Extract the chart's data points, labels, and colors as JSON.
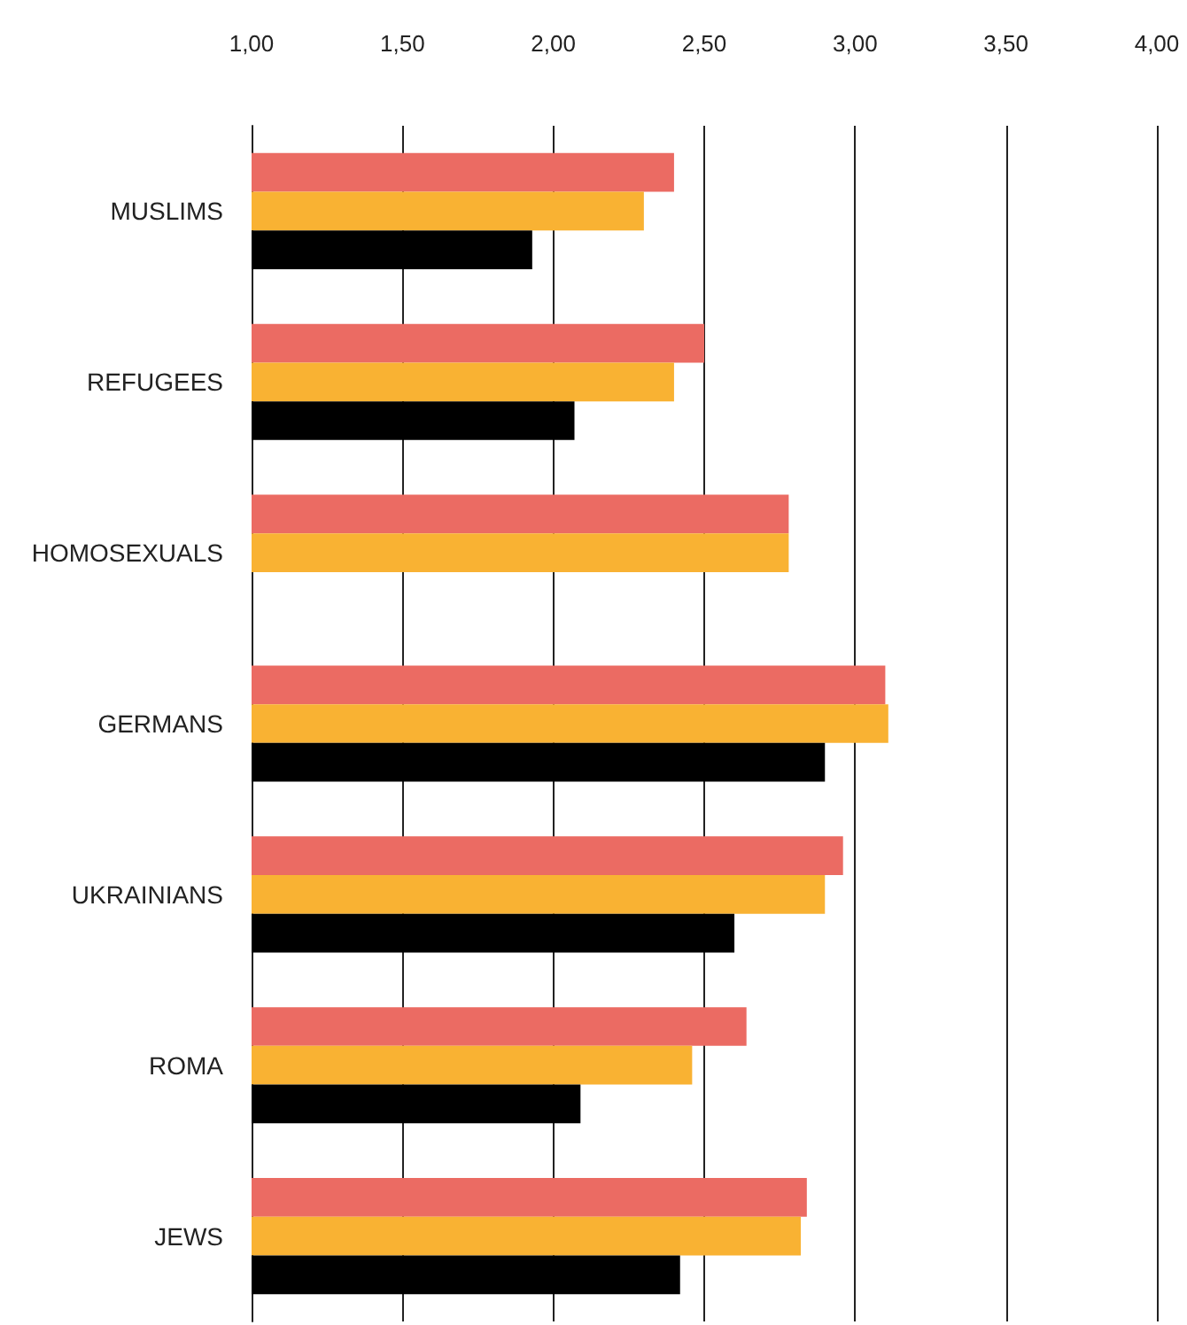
{
  "chart_data": {
    "type": "bar",
    "orientation": "horizontal",
    "categories": [
      "MUSLIMS",
      "REFUGEES",
      "HOMOSEXUALS",
      "GERMANS",
      "UKRAINIANS",
      "ROMA",
      "JEWS"
    ],
    "series": [
      {
        "color": "#eb6b63",
        "values": [
          2.4,
          2.5,
          2.78,
          3.1,
          2.96,
          2.64,
          2.84
        ]
      },
      {
        "color": "#f9b233",
        "values": [
          2.3,
          2.4,
          2.78,
          3.11,
          2.9,
          2.46,
          2.82
        ]
      },
      {
        "color": "#000000",
        "values": [
          1.93,
          2.07,
          null,
          2.9,
          2.6,
          2.09,
          2.42
        ]
      }
    ],
    "xlim": [
      1,
      4
    ],
    "xticks": [
      {
        "value": 1,
        "label": "1,00"
      },
      {
        "value": 1.5,
        "label": "1,50"
      },
      {
        "value": 2,
        "label": "2,00"
      },
      {
        "value": 2.5,
        "label": "2,50"
      },
      {
        "value": 3,
        "label": "3,00"
      },
      {
        "value": 3.5,
        "label": "3,50"
      },
      {
        "value": 4,
        "label": "4,00"
      }
    ],
    "grid": "x"
  }
}
